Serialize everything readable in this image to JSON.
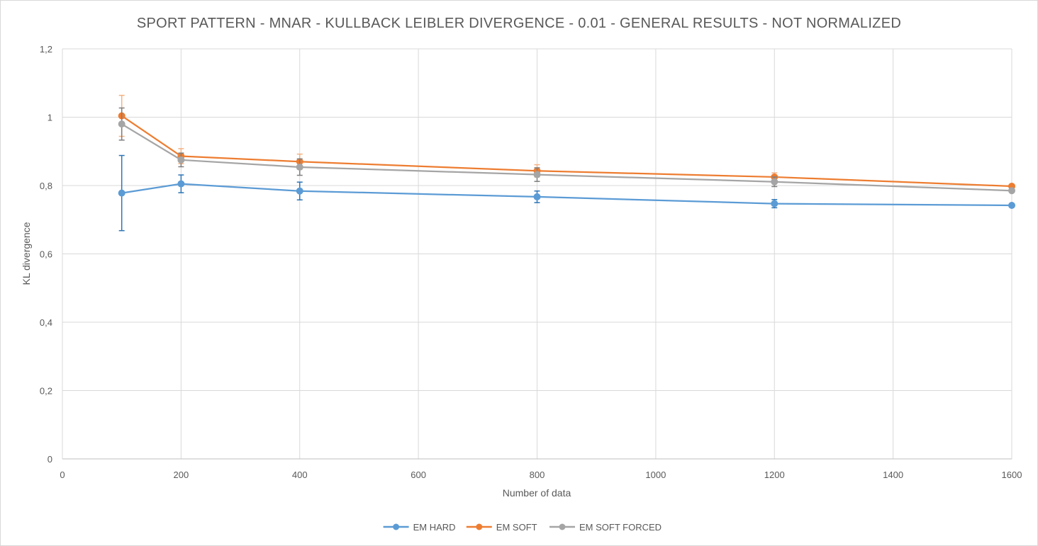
{
  "chart_data": {
    "type": "line",
    "title": "SPORT PATTERN - MNAR - KULLBACK LEIBLER DIVERGENCE - 0.01 - GENERAL RESULTS - NOT NORMALIZED",
    "xlabel": "Number of data",
    "ylabel": "KL divergence",
    "xlim": [
      0,
      1600
    ],
    "ylim": [
      0,
      1.2
    ],
    "x_ticks": [
      0,
      200,
      400,
      600,
      800,
      1000,
      1200,
      1400,
      1600
    ],
    "x_tick_labels": [
      "0",
      "200",
      "400",
      "600",
      "800",
      "1000",
      "1200",
      "1400",
      "1600"
    ],
    "y_ticks": [
      0,
      0.2,
      0.4,
      0.6,
      0.8,
      1,
      1.2
    ],
    "y_tick_labels": [
      "0",
      "0,2",
      "0,4",
      "0,6",
      "0,8",
      "1",
      "1,2"
    ],
    "grid": true,
    "legend_position": "bottom",
    "x": [
      100,
      200,
      400,
      800,
      1200,
      1600
    ],
    "series": [
      {
        "name": "EM HARD",
        "color": "#5b9bd5",
        "error_color": "#2e75b6",
        "values": [
          0.778,
          0.805,
          0.784,
          0.767,
          0.747,
          0.742
        ],
        "errors": [
          0.11,
          0.026,
          0.026,
          0.017,
          0.012,
          0
        ]
      },
      {
        "name": "EM SOFT",
        "color": "#ed7d31",
        "error_color": "#f4b183",
        "values": [
          1.004,
          0.886,
          0.87,
          0.843,
          0.825,
          0.798
        ],
        "errors": [
          0.06,
          0.022,
          0.022,
          0.018,
          0.012,
          0
        ]
      },
      {
        "name": "EM SOFT FORCED",
        "color": "#a5a5a5",
        "error_color": "#7f7f7f",
        "values": [
          0.98,
          0.875,
          0.854,
          0.832,
          0.811,
          0.785
        ],
        "errors": [
          0.047,
          0.02,
          0.024,
          0.02,
          0.014,
          0
        ]
      }
    ]
  }
}
